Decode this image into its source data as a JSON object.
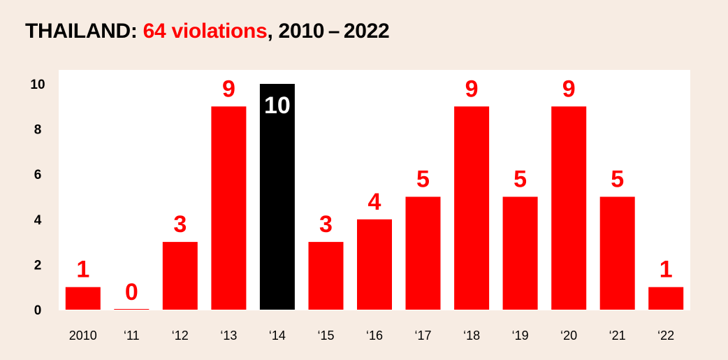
{
  "title": {
    "prefix": "THAILAND: ",
    "highlight": "64 violations",
    "suffix": ", 2010 – 2022"
  },
  "colors": {
    "background": "#f7ece3",
    "plot_background": "#ffffff",
    "bar": "#ff0000",
    "highlight_bar": "#000000",
    "highlight_label": "#ffffff"
  },
  "chart_data": {
    "type": "bar",
    "categories": [
      "2010",
      "‘11",
      "‘12",
      "‘13",
      "‘14",
      "‘15",
      "‘16",
      "‘17",
      "‘18",
      "‘19",
      "‘20",
      "‘21",
      "‘22"
    ],
    "values": [
      1,
      0,
      3,
      9,
      10,
      3,
      4,
      5,
      9,
      5,
      9,
      5,
      1
    ],
    "highlight_index": 4,
    "ylim": [
      0,
      10
    ],
    "yticks": [
      0,
      2,
      4,
      6,
      8,
      10
    ],
    "xlabel": "",
    "ylabel": "",
    "grid": false,
    "legend": "none"
  }
}
